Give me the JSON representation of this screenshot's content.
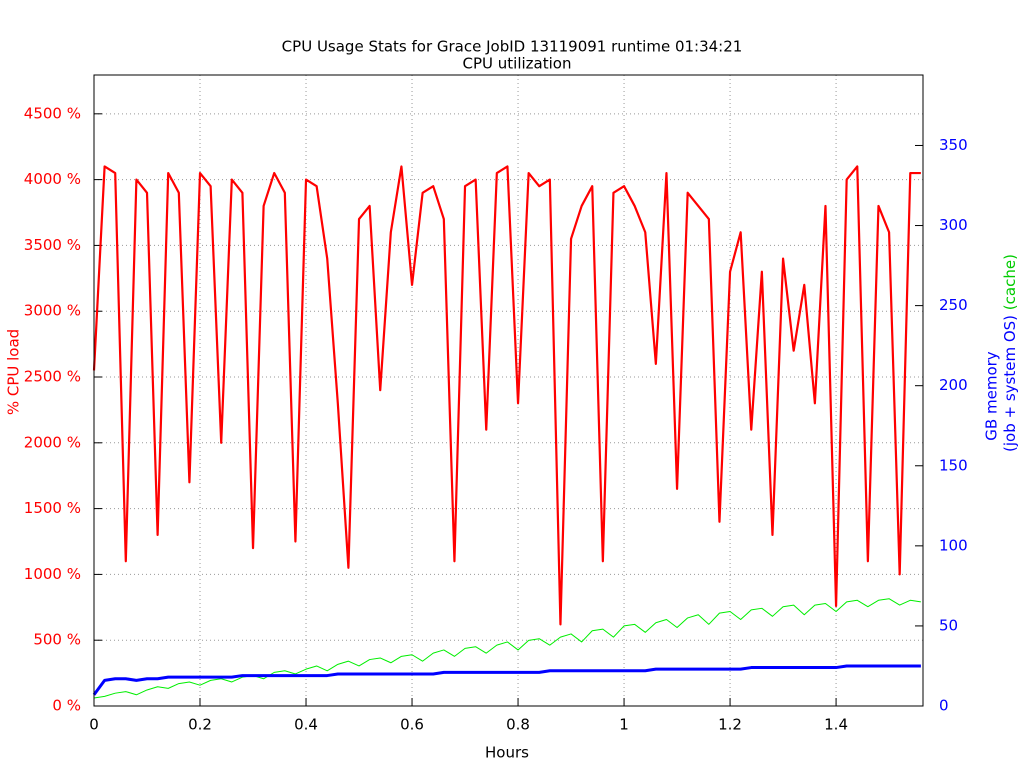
{
  "chart_data": {
    "type": "line",
    "title": "CPU Usage Stats for Grace JobID 13119091  runtime 01:34:21",
    "subtitle": "CPU utilization",
    "xlabel": "Hours",
    "ylabel": "%  CPU load",
    "y2label": {
      "line1": "GB memory",
      "line2": "(job + system OS)",
      "line3": "(cache)"
    },
    "grid": true,
    "xlim": [
      0,
      1.564
    ],
    "xticks": [
      0,
      0.2,
      0.4,
      0.6,
      0.8,
      1,
      1.2,
      1.4
    ],
    "ylim": [
      0,
      4795
    ],
    "yticks": [
      {
        "value": 0,
        "label": "0 %"
      },
      {
        "value": 500,
        "label": "500 %"
      },
      {
        "value": 1000,
        "label": "1000 %"
      },
      {
        "value": 1500,
        "label": "1500 %"
      },
      {
        "value": 2000,
        "label": "2000 %"
      },
      {
        "value": 2500,
        "label": "2500 %"
      },
      {
        "value": 3000,
        "label": "3000 %"
      },
      {
        "value": 3500,
        "label": "3500 %"
      },
      {
        "value": 4000,
        "label": "4000 %"
      },
      {
        "value": 4500,
        "label": "4500 %"
      }
    ],
    "y2lim": [
      0,
      394
    ],
    "y2ticks": [
      0,
      50,
      100,
      150,
      200,
      250,
      300,
      350
    ],
    "x": [
      0,
      0.02,
      0.04,
      0.06,
      0.08,
      0.1,
      0.12,
      0.14,
      0.16,
      0.18,
      0.2,
      0.22,
      0.24,
      0.26,
      0.28,
      0.3,
      0.32,
      0.34,
      0.36,
      0.38,
      0.4,
      0.42,
      0.44,
      0.46,
      0.48,
      0.5,
      0.52,
      0.54,
      0.56,
      0.58,
      0.6,
      0.62,
      0.64,
      0.66,
      0.68,
      0.7,
      0.72,
      0.74,
      0.76,
      0.78,
      0.8,
      0.82,
      0.84,
      0.86,
      0.88,
      0.9,
      0.92,
      0.94,
      0.96,
      0.98,
      1,
      1.02,
      1.04,
      1.06,
      1.08,
      1.1,
      1.12,
      1.14,
      1.16,
      1.18,
      1.2,
      1.22,
      1.24,
      1.26,
      1.28,
      1.3,
      1.32,
      1.34,
      1.36,
      1.38,
      1.4,
      1.42,
      1.44,
      1.46,
      1.48,
      1.5,
      1.52,
      1.54,
      1.56
    ],
    "series": [
      {
        "color": "#ff0000",
        "width": 2.2,
        "values": [
          2550,
          4100,
          4050,
          1100,
          4000,
          3900,
          1300,
          4050,
          3900,
          1700,
          4050,
          3950,
          2000,
          4000,
          3900,
          1200,
          3800,
          4050,
          3900,
          1250,
          4000,
          3950,
          3400,
          2300,
          1050,
          3700,
          3800,
          2400,
          3600,
          4100,
          3200,
          3900,
          3950,
          3700,
          1100,
          3950,
          4000,
          2100,
          4050,
          4100,
          2300,
          4050,
          3950,
          4000,
          620,
          3550,
          3800,
          3950,
          1100,
          3900,
          3950,
          3800,
          3600,
          2600,
          4050,
          1650,
          3900,
          3800,
          3700,
          1400,
          3300,
          3600,
          2100,
          3300,
          1300,
          3400,
          2700,
          3200,
          2300,
          3800,
          760,
          4000,
          4100,
          1100,
          3800,
          3600,
          1000,
          4050,
          4050
        ]
      },
      {
        "color": "#00ee00",
        "width": 1,
        "axis": "y2",
        "values": [
          5,
          6,
          8,
          9,
          7,
          10,
          12,
          11,
          14,
          15,
          13,
          16,
          17,
          15,
          18,
          19,
          17,
          21,
          22,
          20,
          23,
          25,
          22,
          26,
          28,
          25,
          29,
          30,
          27,
          31,
          32,
          28,
          33,
          35,
          31,
          36,
          37,
          33,
          38,
          40,
          35,
          41,
          42,
          38,
          43,
          45,
          40,
          47,
          48,
          43,
          50,
          51,
          46,
          52,
          54,
          49,
          55,
          57,
          51,
          58,
          59,
          54,
          60,
          61,
          56,
          62,
          63,
          57,
          63,
          64,
          59,
          65,
          66,
          62,
          66,
          67,
          63,
          66,
          65
        ]
      },
      {
        "color": "#0000ff",
        "width": 3,
        "axis": "y2",
        "values": [
          7,
          16,
          17,
          17,
          16,
          17,
          17,
          18,
          18,
          18,
          18,
          18,
          18,
          18,
          19,
          19,
          19,
          19,
          19,
          19,
          19,
          19,
          19,
          20,
          20,
          20,
          20,
          20,
          20,
          20,
          20,
          20,
          20,
          21,
          21,
          21,
          21,
          21,
          21,
          21,
          21,
          21,
          21,
          22,
          22,
          22,
          22,
          22,
          22,
          22,
          22,
          22,
          22,
          23,
          23,
          23,
          23,
          23,
          23,
          23,
          23,
          23,
          24,
          24,
          24,
          24,
          24,
          24,
          24,
          24,
          24,
          25,
          25,
          25,
          25,
          25,
          25,
          25,
          25
        ]
      }
    ]
  }
}
